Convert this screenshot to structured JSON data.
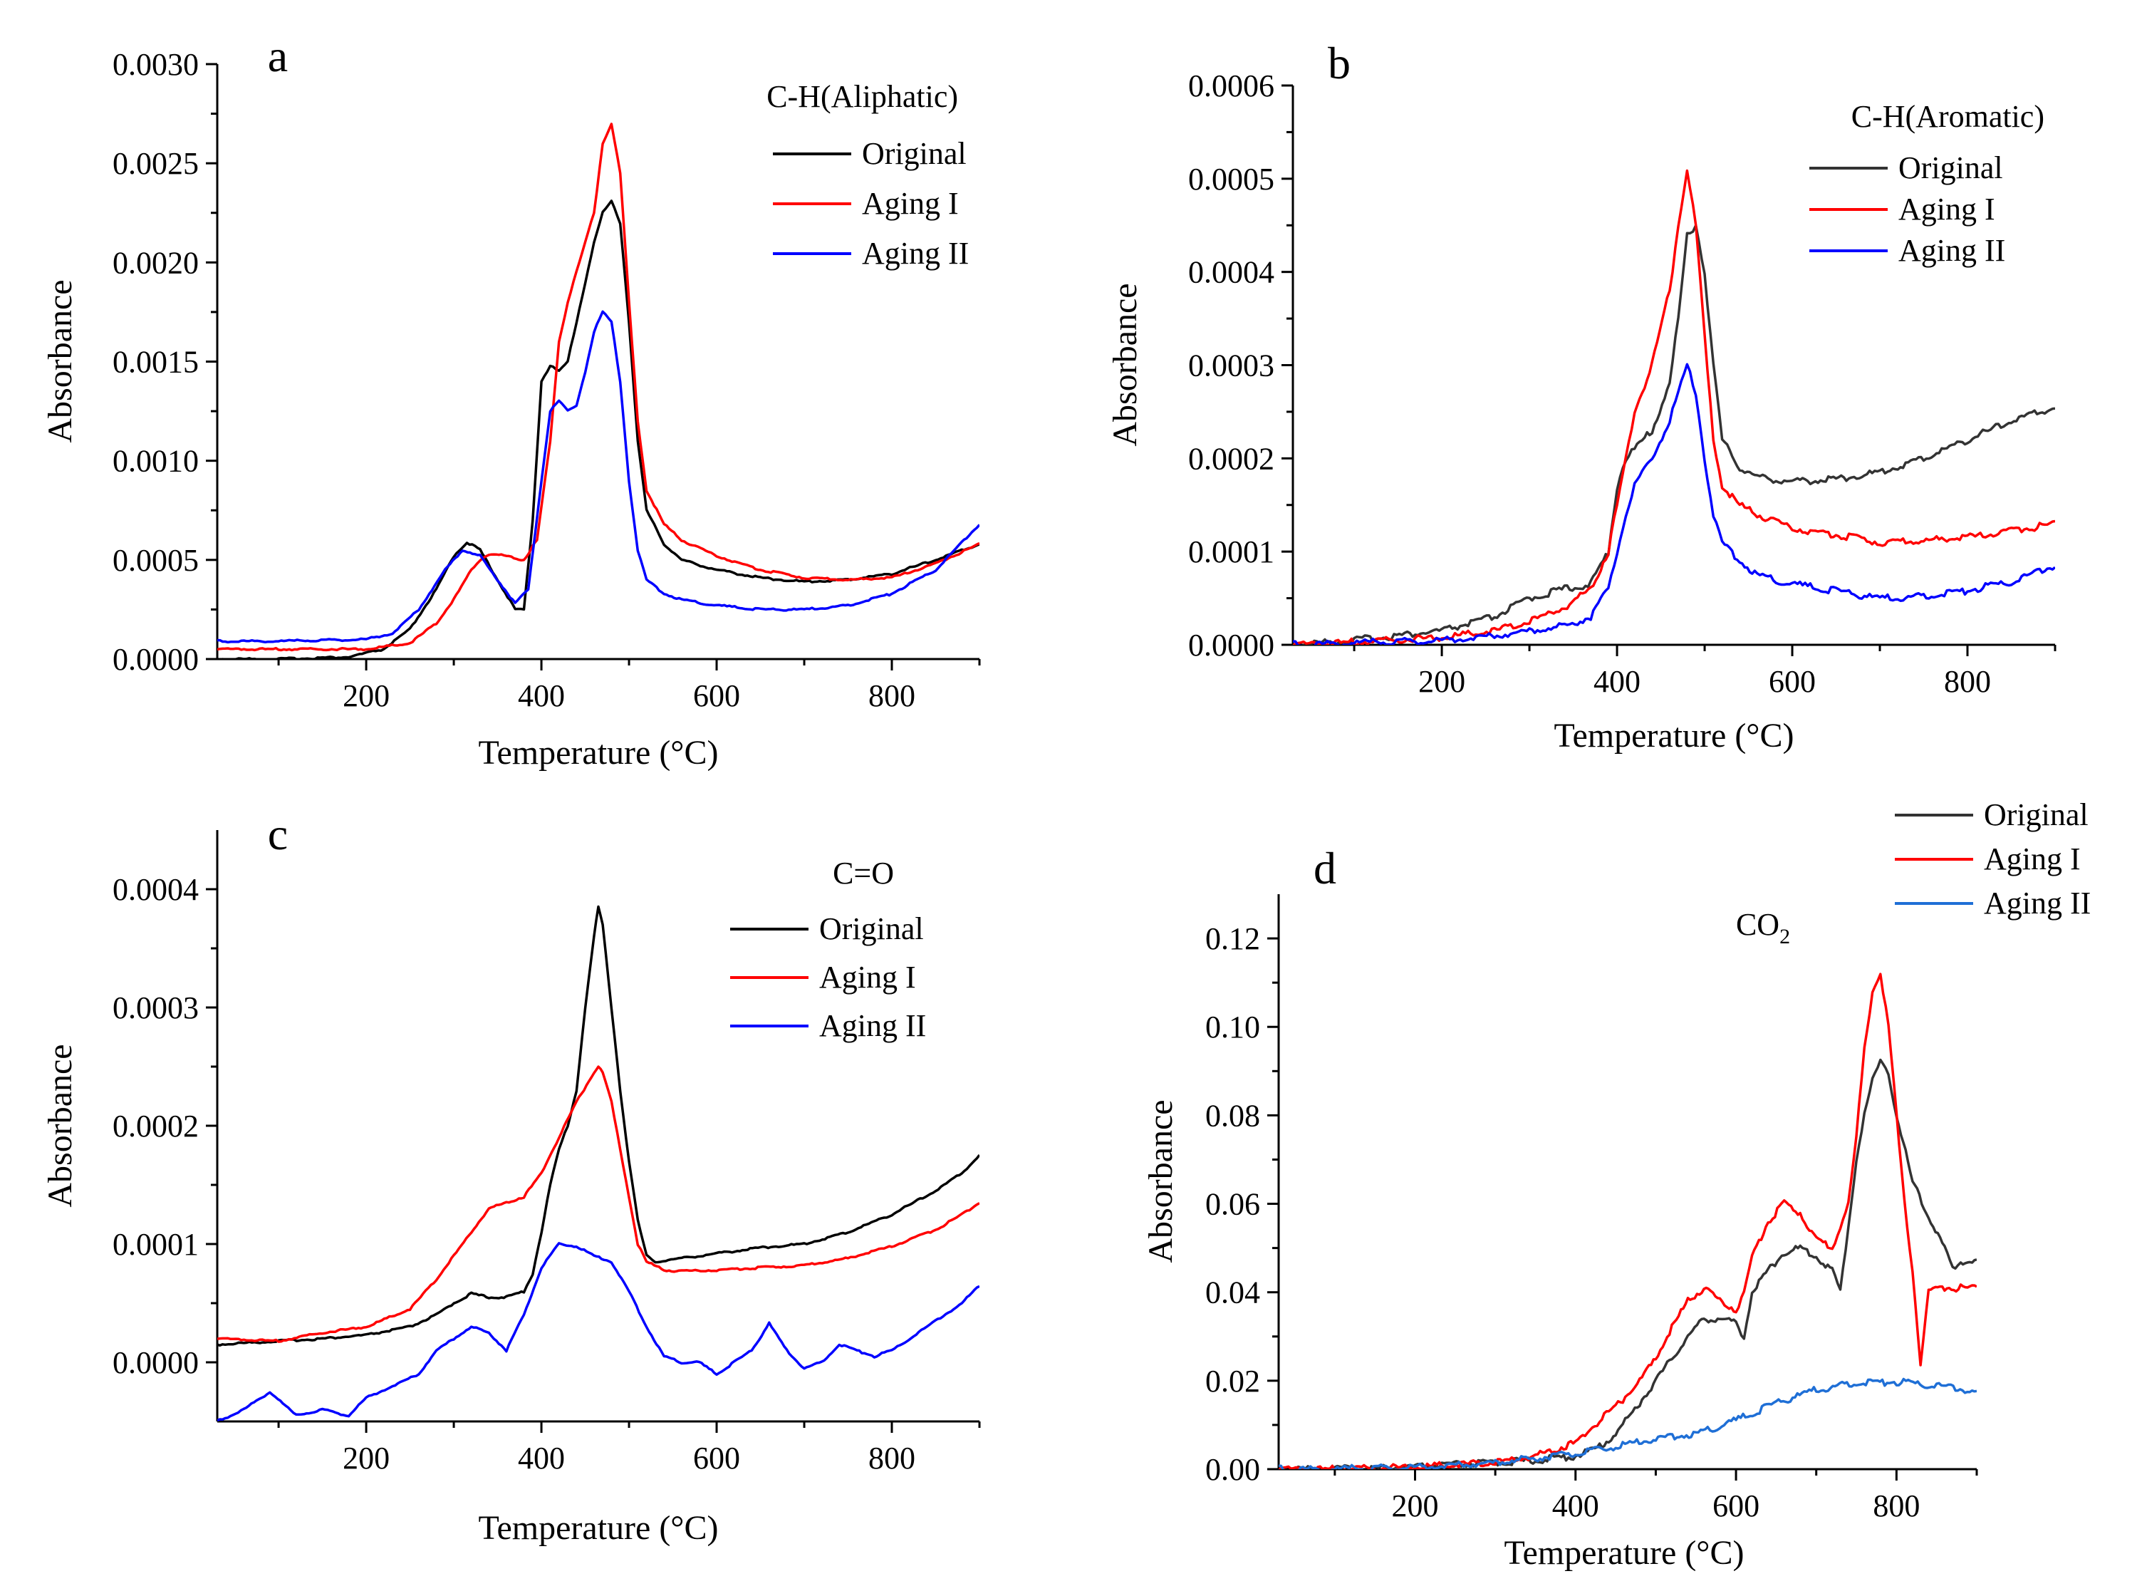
{
  "figure": {
    "background": "#ffffff"
  },
  "chart_data": [
    {
      "panel": "a",
      "type": "line",
      "title": "C-H(Aliphatic)",
      "xlabel": "Temperature (°C)",
      "ylabel": "Absorbance",
      "xlim": [
        30,
        900
      ],
      "ylim": [
        0,
        0.003
      ],
      "xticks": [
        200,
        400,
        600,
        800
      ],
      "xtick_labels": [
        "200",
        "400",
        "600",
        "800"
      ],
      "yticks": [
        0,
        0.0005,
        0.001,
        0.0015,
        0.002,
        0.0025,
        0.003
      ],
      "ytick_labels": [
        "0.0000",
        "0.0005",
        "0.0010",
        "0.0015",
        "0.0020",
        "0.0025",
        "0.0030"
      ],
      "legend_position": "top-right",
      "series": [
        {
          "name": "Original",
          "color": "#000000",
          "x": [
            30,
            100,
            180,
            220,
            250,
            280,
            300,
            315,
            330,
            350,
            370,
            380,
            390,
            400,
            410,
            420,
            430,
            440,
            450,
            460,
            470,
            480,
            490,
            500,
            510,
            520,
            540,
            560,
            600,
            650,
            700,
            750,
            800,
            850,
            900
          ],
          "y": [
            0.0,
            0.0,
            1e-05,
            5e-05,
            0.00015,
            0.00035,
            0.00052,
            0.00059,
            0.00055,
            0.0004,
            0.00025,
            0.00025,
            0.0007,
            0.0014,
            0.00148,
            0.00145,
            0.0015,
            0.0017,
            0.0019,
            0.0021,
            0.00225,
            0.00231,
            0.0022,
            0.0017,
            0.0011,
            0.00075,
            0.00058,
            0.0005,
            0.00045,
            0.00041,
            0.00039,
            0.0004,
            0.00043,
            0.0005,
            0.00058
          ]
        },
        {
          "name": "Aging I",
          "color": "#ff0000",
          "x": [
            30,
            100,
            200,
            250,
            280,
            300,
            320,
            330,
            340,
            360,
            380,
            395,
            410,
            420,
            430,
            440,
            450,
            460,
            470,
            480,
            490,
            500,
            510,
            520,
            540,
            560,
            600,
            650,
            700,
            750,
            800,
            850,
            900
          ],
          "y": [
            5e-05,
            5e-05,
            5e-05,
            8e-05,
            0.00018,
            0.0003,
            0.00045,
            0.0005,
            0.00053,
            0.00052,
            0.0005,
            0.0006,
            0.0011,
            0.0016,
            0.0018,
            0.00195,
            0.0021,
            0.00225,
            0.0026,
            0.0027,
            0.00245,
            0.0018,
            0.0012,
            0.00085,
            0.00068,
            0.0006,
            0.00052,
            0.00045,
            0.00041,
            0.0004,
            0.00041,
            0.00048,
            0.00058
          ]
        },
        {
          "name": "Aging II",
          "color": "#0000ff",
          "x": [
            30,
            100,
            200,
            230,
            260,
            290,
            310,
            330,
            350,
            370,
            385,
            400,
            410,
            420,
            430,
            440,
            450,
            460,
            470,
            480,
            490,
            500,
            510,
            520,
            540,
            560,
            600,
            650,
            700,
            750,
            800,
            850,
            900
          ],
          "y": [
            9e-05,
            9e-05,
            0.0001,
            0.00013,
            0.00025,
            0.00045,
            0.00055,
            0.00052,
            0.0004,
            0.00028,
            0.00035,
            0.0009,
            0.00125,
            0.0013,
            0.00125,
            0.00128,
            0.00145,
            0.00165,
            0.00175,
            0.0017,
            0.0014,
            0.0009,
            0.00055,
            0.0004,
            0.00033,
            0.0003,
            0.00027,
            0.00025,
            0.00025,
            0.00027,
            0.00033,
            0.00045,
            0.00068
          ]
        }
      ]
    },
    {
      "panel": "b",
      "type": "line",
      "title": "C-H(Aromatic)",
      "xlabel": "Temperature (°C)",
      "ylabel": "Absorbance",
      "xlim": [
        30,
        900
      ],
      "ylim": [
        0,
        0.0006
      ],
      "xticks": [
        200,
        400,
        600,
        800
      ],
      "xtick_labels": [
        "200",
        "400",
        "600",
        "800"
      ],
      "yticks": [
        0,
        0.0001,
        0.0002,
        0.0003,
        0.0004,
        0.0005,
        0.0006
      ],
      "ytick_labels": [
        "0.0000",
        "0.0001",
        "0.0002",
        "0.0003",
        "0.0004",
        "0.0005",
        "0.0006"
      ],
      "legend_position": "top-right",
      "series": [
        {
          "name": "Original",
          "color": "#333333",
          "x": [
            30,
            100,
            200,
            260,
            300,
            340,
            370,
            390,
            400,
            410,
            420,
            440,
            460,
            470,
            480,
            490,
            500,
            510,
            520,
            540,
            560,
            600,
            650,
            700,
            750,
            800,
            850,
            900
          ],
          "y": [
            0.0,
            5e-06,
            1.5e-05,
            3e-05,
            5e-05,
            6e-05,
            6.5e-05,
            0.0001,
            0.00017,
            0.0002,
            0.00021,
            0.00023,
            0.00028,
            0.00035,
            0.00044,
            0.00045,
            0.0004,
            0.0003,
            0.00022,
            0.00019,
            0.00018,
            0.000175,
            0.000178,
            0.000185,
            0.0002,
            0.00022,
            0.00024,
            0.000255
          ]
        },
        {
          "name": "Aging I",
          "color": "#ff0000",
          "x": [
            30,
            100,
            200,
            260,
            300,
            340,
            370,
            390,
            400,
            410,
            420,
            440,
            460,
            470,
            480,
            490,
            500,
            510,
            520,
            540,
            560,
            600,
            650,
            700,
            750,
            800,
            850,
            900
          ],
          "y": [
            0.0,
            3e-06,
            8e-06,
            1.5e-05,
            2.5e-05,
            4e-05,
            6e-05,
            0.0001,
            0.00015,
            0.0002,
            0.00025,
            0.0003,
            0.00038,
            0.00045,
            0.00051,
            0.00045,
            0.00033,
            0.00022,
            0.00017,
            0.00015,
            0.00014,
            0.000125,
            0.000118,
            0.00011,
            0.000112,
            0.000115,
            0.000122,
            0.00013
          ]
        },
        {
          "name": "Aging II",
          "color": "#0000ff",
          "x": [
            30,
            100,
            200,
            260,
            300,
            340,
            370,
            390,
            400,
            410,
            420,
            440,
            460,
            470,
            480,
            490,
            500,
            510,
            520,
            540,
            560,
            600,
            650,
            700,
            750,
            800,
            850,
            900
          ],
          "y": [
            0.0,
            2e-06,
            5e-06,
            1e-05,
            1.5e-05,
            2e-05,
            3e-05,
            6e-05,
            0.0001,
            0.00014,
            0.00017,
            0.0002,
            0.00024,
            0.00027,
            0.0003,
            0.00027,
            0.0002,
            0.00014,
            0.00011,
            9e-05,
            7.5e-05,
            6.5e-05,
            5.8e-05,
            5e-05,
            5.2e-05,
            5.8e-05,
            6.8e-05,
            8.5e-05
          ]
        }
      ]
    },
    {
      "panel": "c",
      "type": "line",
      "title": "C=O",
      "xlabel": "Temperature (°C)",
      "ylabel": "Absorbance",
      "xlim": [
        30,
        900
      ],
      "ylim": [
        -5e-05,
        0.00045
      ],
      "xticks": [
        200,
        400,
        600,
        800
      ],
      "xtick_labels": [
        "200",
        "400",
        "600",
        "800"
      ],
      "yticks": [
        0,
        0.0001,
        0.0002,
        0.0003,
        0.0004
      ],
      "ytick_labels": [
        "0.0000",
        "0.0001",
        "0.0002",
        "0.0003",
        "0.0004"
      ],
      "legend_position": "top-right",
      "series": [
        {
          "name": "Original",
          "color": "#000000",
          "x": [
            30,
            100,
            150,
            200,
            250,
            280,
            300,
            320,
            340,
            360,
            380,
            390,
            400,
            410,
            420,
            430,
            440,
            450,
            460,
            465,
            470,
            480,
            490,
            500,
            510,
            520,
            530,
            560,
            600,
            650,
            700,
            750,
            800,
            850,
            880,
            900
          ],
          "y": [
            1.5e-05,
            1.8e-05,
            2e-05,
            2.3e-05,
            3e-05,
            4e-05,
            5e-05,
            5.8e-05,
            5.5e-05,
            5.5e-05,
            6e-05,
            7.5e-05,
            0.00011,
            0.00015,
            0.00018,
            0.0002,
            0.00023,
            0.0003,
            0.00036,
            0.000385,
            0.00037,
            0.0003,
            0.00023,
            0.00017,
            0.00012,
            9e-05,
            8.5e-05,
            8.8e-05,
            9.2e-05,
            9.7e-05,
            0.0001,
            0.00011,
            0.000125,
            0.000145,
            0.00016,
            0.000175
          ]
        },
        {
          "name": "Aging I",
          "color": "#ff0000",
          "x": [
            30,
            100,
            150,
            200,
            250,
            280,
            300,
            320,
            340,
            360,
            380,
            400,
            420,
            440,
            460,
            465,
            470,
            480,
            490,
            500,
            510,
            520,
            540,
            560,
            600,
            650,
            700,
            750,
            800,
            850,
            880,
            900
          ],
          "y": [
            2e-05,
            1.8e-05,
            2.5e-05,
            3e-05,
            4.5e-05,
            7e-05,
            9e-05,
            0.00011,
            0.00013,
            0.000135,
            0.00014,
            0.00016,
            0.00019,
            0.00022,
            0.000245,
            0.00025,
            0.000245,
            0.00022,
            0.00018,
            0.00014,
            0.0001,
            8.5e-05,
            7.8e-05,
            7.7e-05,
            7.8e-05,
            8e-05,
            8.2e-05,
            8.8e-05,
            9.8e-05,
            0.000112,
            0.000125,
            0.000135
          ]
        },
        {
          "name": "Aging II",
          "color": "#0000ff",
          "x": [
            30,
            60,
            90,
            120,
            150,
            180,
            200,
            230,
            260,
            280,
            300,
            320,
            340,
            360,
            380,
            400,
            420,
            440,
            460,
            480,
            500,
            520,
            540,
            560,
            580,
            600,
            620,
            640,
            660,
            680,
            700,
            720,
            740,
            760,
            780,
            800,
            840,
            880,
            900
          ],
          "y": [
            -5e-05,
            -4e-05,
            -2.5e-05,
            -4.5e-05,
            -4e-05,
            -4.5e-05,
            -3e-05,
            -2e-05,
            -1e-05,
            1e-05,
            2e-05,
            3e-05,
            2.5e-05,
            1e-05,
            4e-05,
            8e-05,
            0.0001,
            9.8e-05,
            9e-05,
            8.5e-05,
            6e-05,
            3e-05,
            5e-06,
            0.0,
            0.0,
            -1e-05,
            0.0,
            1e-05,
            3.3e-05,
            1e-05,
            -5e-06,
            0.0,
            1.5e-05,
            1e-05,
            5e-06,
            1e-05,
            3e-05,
            5e-05,
            6.5e-05
          ]
        }
      ]
    },
    {
      "panel": "d",
      "type": "line",
      "title": "CO",
      "title_subscript": "2",
      "xlabel": "Temperature (°C)",
      "ylabel": "Absorbance",
      "xlim": [
        30,
        900
      ],
      "ylim": [
        0,
        0.13
      ],
      "xticks": [
        200,
        400,
        600,
        800
      ],
      "xtick_labels": [
        "200",
        "400",
        "600",
        "800"
      ],
      "yticks": [
        0,
        0.02,
        0.04,
        0.06,
        0.08,
        0.1,
        0.12
      ],
      "ytick_labels": [
        "0.00",
        "0.02",
        "0.04",
        "0.06",
        "0.08",
        "0.10",
        "0.12"
      ],
      "legend_position": "top-right, above plot",
      "series": [
        {
          "name": "Original",
          "color": "#333333",
          "x": [
            30,
            100,
            200,
            300,
            350,
            400,
            430,
            450,
            480,
            500,
            520,
            540,
            560,
            580,
            600,
            610,
            620,
            640,
            660,
            680,
            700,
            720,
            730,
            740,
            750,
            760,
            770,
            780,
            790,
            800,
            820,
            840,
            860,
            870,
            880,
            900
          ],
          "y": [
            0.0,
            0.0,
            0.0005,
            0.0015,
            0.002,
            0.003,
            0.005,
            0.008,
            0.015,
            0.02,
            0.025,
            0.03,
            0.034,
            0.034,
            0.033,
            0.03,
            0.04,
            0.045,
            0.049,
            0.05,
            0.048,
            0.045,
            0.04,
            0.055,
            0.07,
            0.08,
            0.088,
            0.092,
            0.09,
            0.08,
            0.065,
            0.057,
            0.05,
            0.045,
            0.047,
            0.047
          ]
        },
        {
          "name": "Aging I",
          "color": "#ff0000",
          "x": [
            30,
            100,
            200,
            300,
            350,
            400,
            430,
            450,
            480,
            500,
            520,
            540,
            560,
            580,
            600,
            610,
            620,
            640,
            660,
            680,
            700,
            720,
            730,
            740,
            750,
            760,
            770,
            780,
            790,
            800,
            810,
            820,
            830,
            840,
            860,
            880,
            900
          ],
          "y": [
            0.0,
            0.0,
            0.0005,
            0.0015,
            0.003,
            0.006,
            0.011,
            0.014,
            0.02,
            0.025,
            0.032,
            0.038,
            0.041,
            0.038,
            0.036,
            0.04,
            0.048,
            0.056,
            0.06,
            0.058,
            0.052,
            0.05,
            0.055,
            0.06,
            0.075,
            0.095,
            0.108,
            0.112,
            0.1,
            0.08,
            0.06,
            0.045,
            0.024,
            0.04,
            0.041,
            0.041,
            0.041
          ]
        },
        {
          "name": "Aging II",
          "color": "#1f6fd6",
          "x": [
            30,
            100,
            200,
            300,
            350,
            400,
            450,
            500,
            550,
            600,
            650,
            700,
            750,
            800,
            850,
            900
          ],
          "y": [
            0.0,
            0.0,
            0.0005,
            0.0015,
            0.0025,
            0.0035,
            0.005,
            0.007,
            0.008,
            0.011,
            0.015,
            0.018,
            0.0195,
            0.0197,
            0.019,
            0.0175
          ]
        }
      ]
    }
  ]
}
